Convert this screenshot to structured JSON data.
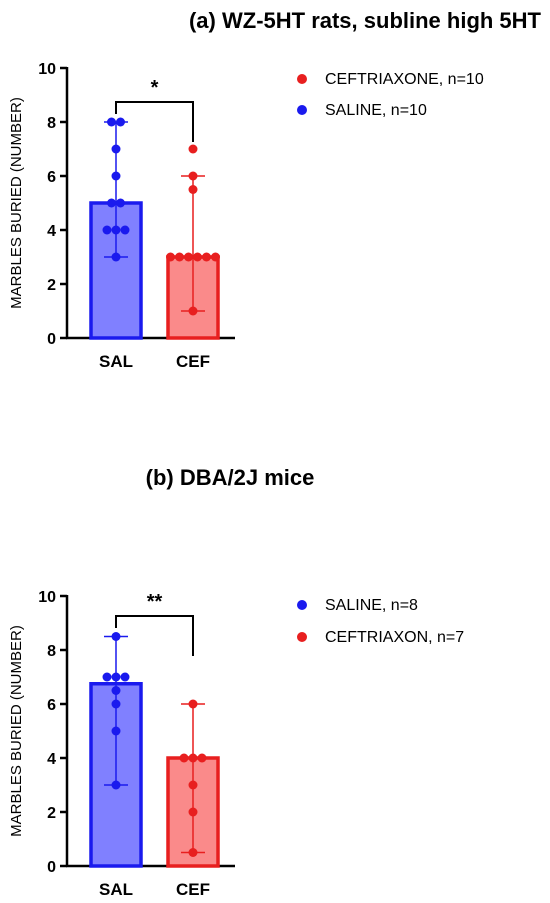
{
  "chart_data": [
    {
      "type": "bar",
      "title": "(a) WZ-5HT rats, subline high 5HT",
      "xlabel": "",
      "ylabel": "MARBLES BURIED (NUMBER)",
      "ylim": [
        0,
        10
      ],
      "yticks": [
        "0",
        "2",
        "4",
        "6",
        "8",
        "10"
      ],
      "categories": [
        "SAL",
        "CEF"
      ],
      "legend_position": "right",
      "legend": [
        {
          "label": "CEFTRIAXONE, n=10",
          "color": "#e81f1f"
        },
        {
          "label": "SALINE, n=10",
          "color": "#1a1aee"
        }
      ],
      "significance": "*",
      "series": [
        {
          "category": "SAL",
          "value": 5,
          "error_low": 3,
          "error_high": 8,
          "points": [
            8,
            8,
            7,
            6,
            5,
            5,
            4,
            4,
            4,
            3
          ],
          "bar_color": "#8080ff",
          "edge_color": "#1a1aee",
          "point_color": "#1a1aee"
        },
        {
          "category": "CEF",
          "value": 3,
          "error_low": 1,
          "error_high": 6,
          "points": [
            7,
            6,
            5.5,
            3,
            3,
            3,
            3,
            3,
            3,
            1
          ],
          "bar_color": "#fa8a8a",
          "edge_color": "#e81f1f",
          "point_color": "#e81f1f"
        }
      ]
    },
    {
      "type": "bar",
      "title": "(b) DBA/2J mice",
      "xlabel": "",
      "ylabel": "MARBLES BURIED (NUMBER)",
      "ylim": [
        0,
        10
      ],
      "yticks": [
        "0",
        "2",
        "4",
        "6",
        "8",
        "10"
      ],
      "categories": [
        "SAL",
        "CEF"
      ],
      "legend_position": "right",
      "legend": [
        {
          "label": "SALINE, n=8",
          "color": "#1a1aee"
        },
        {
          "label": "CEFTRIAXON, n=7",
          "color": "#e81f1f"
        }
      ],
      "significance": "**",
      "series": [
        {
          "category": "SAL",
          "value": 6.75,
          "error_low": 3,
          "error_high": 8.5,
          "points": [
            8.5,
            7,
            7,
            7,
            6.5,
            6,
            5,
            3
          ],
          "bar_color": "#8080ff",
          "edge_color": "#1a1aee",
          "point_color": "#1a1aee"
        },
        {
          "category": "CEF",
          "value": 4,
          "error_low": 0.5,
          "error_high": 6,
          "points": [
            6,
            4,
            4,
            4,
            3,
            2,
            0.5
          ],
          "bar_color": "#fa8a8a",
          "edge_color": "#e81f1f",
          "point_color": "#e81f1f"
        }
      ]
    }
  ]
}
